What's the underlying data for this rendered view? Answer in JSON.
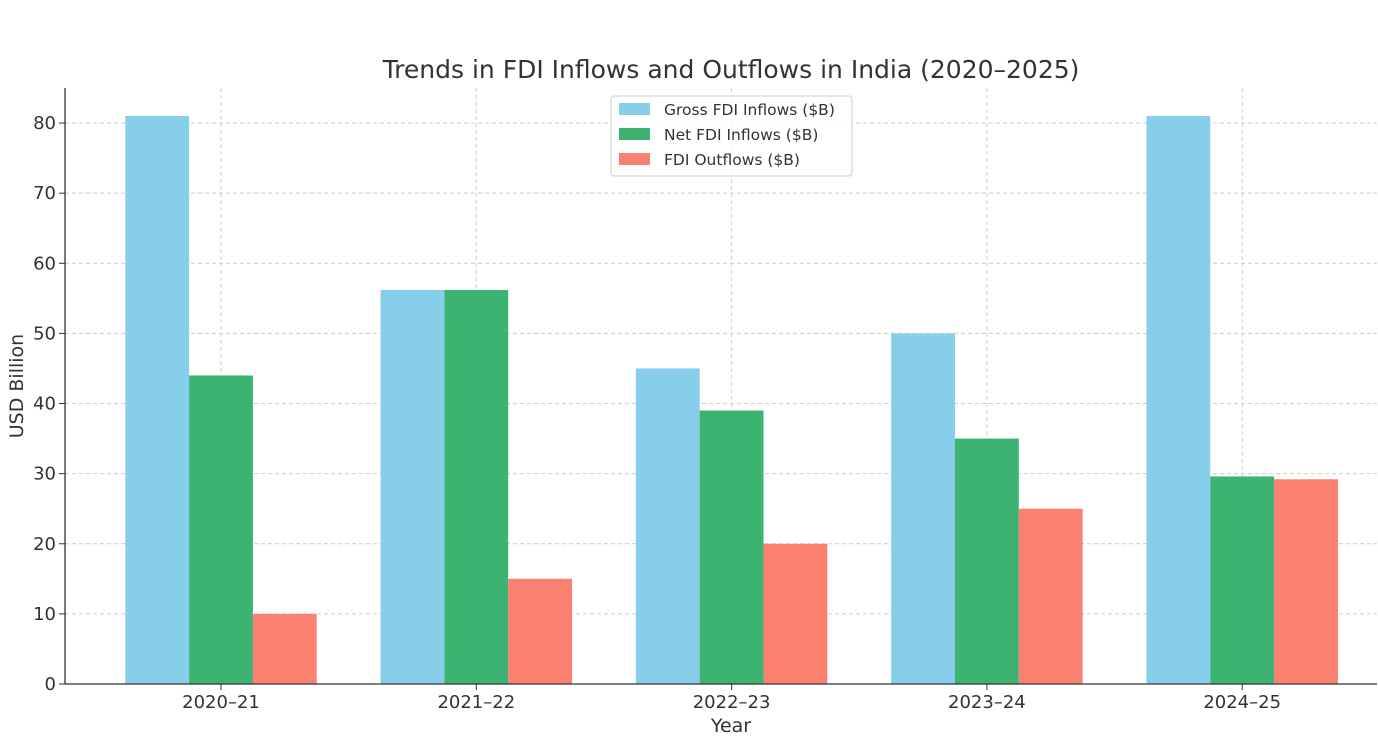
{
  "chart_data": {
    "type": "bar",
    "title": "Trends in FDI Inflows and Outflows in India (2020–2025)",
    "xlabel": "Year",
    "ylabel": "USD Billion",
    "ylim": [
      0,
      85
    ],
    "yticks": [
      0,
      10,
      20,
      30,
      40,
      50,
      60,
      70,
      80
    ],
    "grid": true,
    "legend_position": "top-center",
    "categories": [
      "2020–21",
      "2021–22",
      "2022–23",
      "2023–24",
      "2024–25"
    ],
    "series": [
      {
        "name": "Gross FDI Inflows ($B)",
        "color": "#87ceeb",
        "values": [
          81,
          56.2,
          45,
          50,
          81
        ]
      },
      {
        "name": "Net FDI Inflows ($B)",
        "color": "#3cb371",
        "values": [
          44,
          56.2,
          39,
          35,
          29.6
        ]
      },
      {
        "name": "FDI Outflows ($B)",
        "color": "#fa8072",
        "values": [
          10,
          15,
          20,
          25,
          29.2
        ]
      }
    ]
  }
}
